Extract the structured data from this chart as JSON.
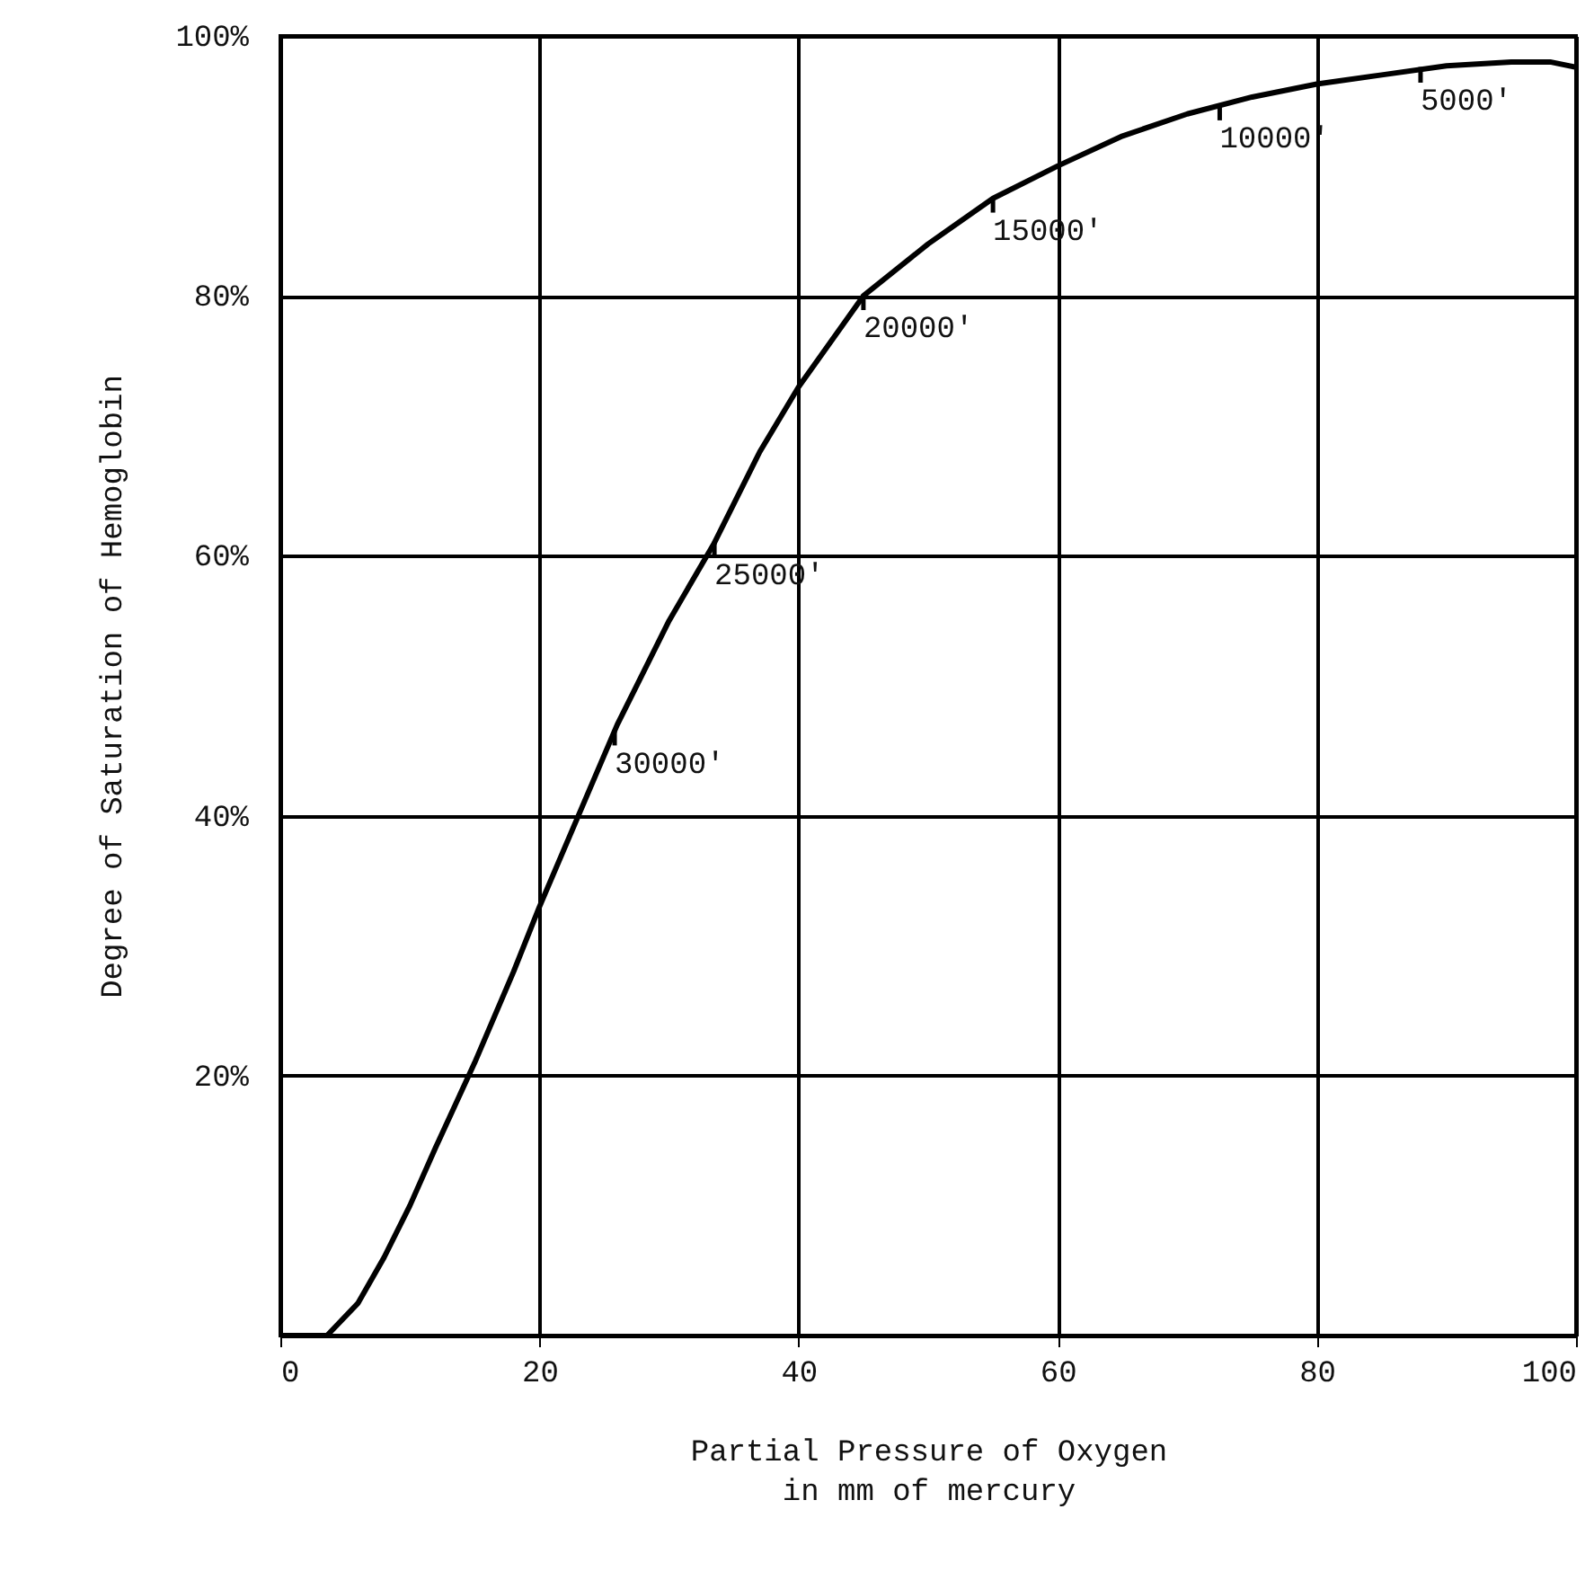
{
  "chart_data": {
    "type": "line",
    "xlabel": "Partial Pressure of Oxygen\nin mm of mercury",
    "ylabel": "Degree of Saturation of Hemoglobin",
    "x": [
      0,
      3.6,
      6,
      8,
      10,
      12,
      15,
      18,
      20,
      23,
      26,
      30,
      33.5,
      37,
      40,
      45,
      50,
      55,
      60,
      65,
      70,
      75,
      80,
      85,
      90,
      95,
      98,
      100
    ],
    "series": [
      {
        "color": "#000000",
        "values": [
          0,
          0,
          2.5,
          6,
          10,
          14.5,
          21,
          28,
          33,
          40,
          47,
          55,
          61,
          68,
          73,
          80,
          84,
          87.5,
          90,
          92.3,
          94,
          95.3,
          96.3,
          97,
          97.7,
          98,
          98,
          97.6
        ]
      }
    ],
    "annotations": [
      {
        "text": "5000'",
        "x": 88,
        "y": 97.5
      },
      {
        "text": "10000'",
        "x": 72.5,
        "y": 94.6
      },
      {
        "text": "15000'",
        "x": 55,
        "y": 87.5
      },
      {
        "text": "20000'",
        "x": 45,
        "y": 80
      },
      {
        "text": "25000'",
        "x": 33.5,
        "y": 61
      },
      {
        "text": "30000'",
        "x": 25.8,
        "y": 46.5
      }
    ],
    "xlim": [
      0,
      100
    ],
    "ylim": [
      0,
      100
    ],
    "xticks": [
      0,
      20,
      40,
      60,
      80,
      100
    ],
    "yticks": [
      {
        "value": 0,
        "label": null
      },
      {
        "value": 20,
        "label": "20%"
      },
      {
        "value": 40,
        "label": "40%"
      },
      {
        "value": 60,
        "label": "60%"
      },
      {
        "value": 80,
        "label": "80%"
      },
      {
        "value": 100,
        "label": "100%"
      }
    ],
    "grid": true,
    "marker": "none",
    "line_style": "solid"
  }
}
